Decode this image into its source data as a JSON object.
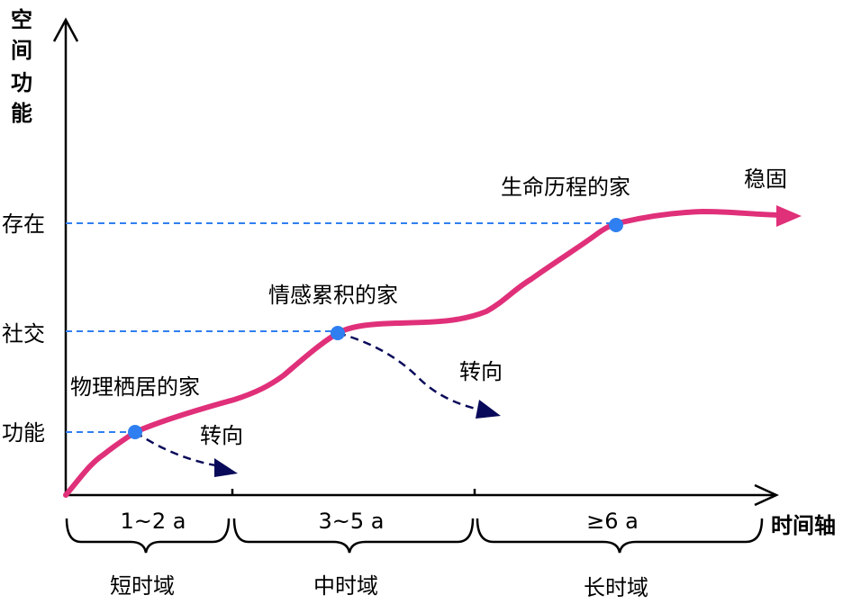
{
  "axes": {
    "y_title": [
      "空",
      "间",
      "功",
      "能"
    ],
    "x_title": "时间轴",
    "y_levels": [
      "存在",
      "社交",
      "功能"
    ]
  },
  "stages": [
    {
      "label": "物理栖居的家",
      "range": "1~2 a",
      "domain": "短时域",
      "turn": "转向"
    },
    {
      "label": "情感累积的家",
      "range": "3~5 a",
      "domain": "中时域",
      "turn": "转向"
    },
    {
      "label": "生命历程的家",
      "range": "≥6 a",
      "domain": "长时域"
    }
  ],
  "end_label": "稳固",
  "colors": {
    "curve": "#e0307a",
    "dot": "#2f7ff0",
    "guide": "#2f7ff0",
    "turn": "#0a0a5a"
  }
}
